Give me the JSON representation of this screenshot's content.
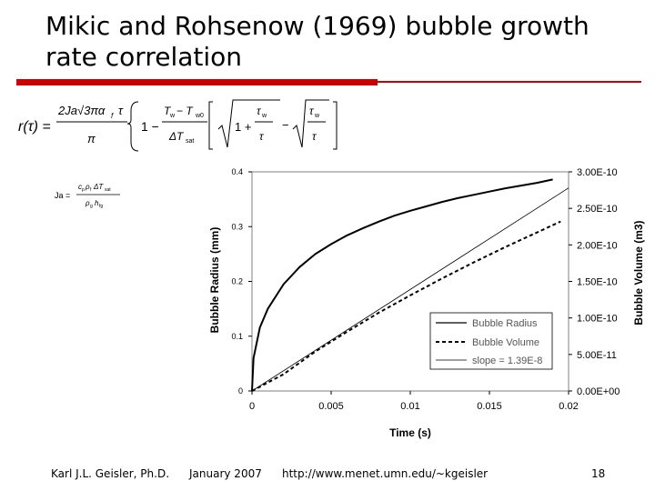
{
  "slide": {
    "title": "Mikic and Rohsenow (1969) bubble growth rate correlation",
    "accent_color": "#cc0000",
    "footer": {
      "author": "Karl J.L. Geisler, Ph.D.",
      "date": "January 2007",
      "url": "http://www.menet.umn.edu/~kgeisler",
      "page": "18"
    }
  },
  "equation": {
    "main": {
      "lhs": "r(τ) =",
      "num": "2Ja√(3πα_f τ)",
      "den": "π",
      "bracket_term": "1 − (T_w − T_w0)/ΔT_sat [√(1 + τ_w/τ) − √(τ_w/τ)]"
    },
    "jakob": {
      "lhs": "Ja =",
      "num": "c_p ρ_f ΔT_sat",
      "den": "ρ_g h_fg"
    }
  },
  "chart_data": {
    "type": "line",
    "xlabel": "Time (s)",
    "ylabel": "Bubble Radius (mm)",
    "y2label": "Bubble Volume (m3)",
    "xlim": [
      0,
      0.02
    ],
    "ylim": [
      0,
      0.4
    ],
    "y2lim": [
      0,
      3e-10
    ],
    "xticks": [
      "0",
      "0.005",
      "0.01",
      "0.015",
      "0.02"
    ],
    "yticks": [
      "0",
      "0.1",
      "0.2",
      "0.3",
      "0.4"
    ],
    "y2ticks": [
      "0.00E+00",
      "5.00E-11",
      "1.00E-10",
      "1.50E-10",
      "2.00E-10",
      "2.50E-10",
      "3.00E-10"
    ],
    "grid": false,
    "legend_position": "bottom-right",
    "series": [
      {
        "name": "Bubble Radius",
        "axis": "left",
        "style": "solid-thick",
        "x": [
          0,
          0.0001,
          0.0005,
          0.001,
          0.002,
          0.003,
          0.004,
          0.005,
          0.006,
          0.007,
          0.008,
          0.009,
          0.01,
          0.011,
          0.012,
          0.013,
          0.014,
          0.015,
          0.016,
          0.017,
          0.018,
          0.019
        ],
        "y": [
          0,
          0.06,
          0.116,
          0.15,
          0.195,
          0.226,
          0.25,
          0.268,
          0.284,
          0.297,
          0.309,
          0.32,
          0.329,
          0.337,
          0.345,
          0.352,
          0.358,
          0.364,
          0.37,
          0.375,
          0.38,
          0.386
        ]
      },
      {
        "name": "Bubble Volume",
        "axis": "right",
        "style": "dashed",
        "x": [
          0,
          0.002,
          0.004,
          0.006,
          0.008,
          0.01,
          0.012,
          0.014,
          0.016,
          0.018,
          0.0195
        ],
        "y": [
          0,
          2.3e-11,
          5.4e-11,
          8.1e-11,
          1.07e-10,
          1.31e-10,
          1.54e-10,
          1.76e-10,
          1.97e-10,
          2.17e-10,
          2.32e-10
        ]
      },
      {
        "name": "slope = 1.39E-8",
        "axis": "right",
        "style": "solid-thin",
        "x": [
          0,
          0.02
        ],
        "y": [
          0,
          2.78e-10
        ]
      }
    ]
  }
}
